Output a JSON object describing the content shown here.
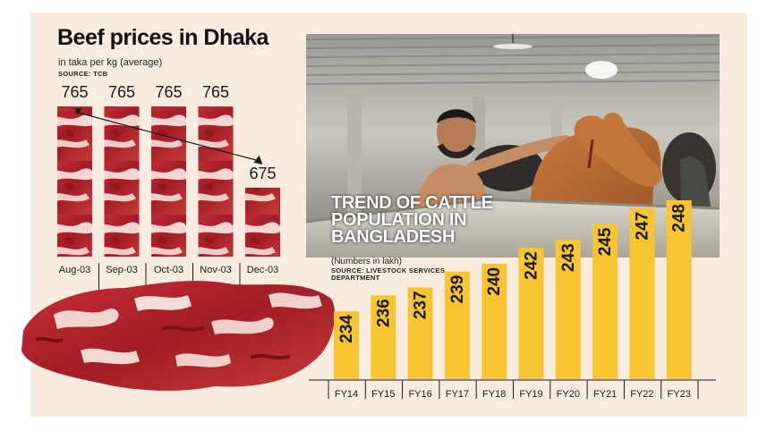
{
  "beef_chart": {
    "title": "Beef prices in Dhaka",
    "subtitle": "in taka per kg (average)",
    "source": "SOURCE: TCB"
  },
  "cattle_chart": {
    "title": "TREND OF CATTLE POPULATION IN BANGLADESH",
    "units": "(Numbers in lakh)",
    "source": "SOURCE: LIVESTOCK SERVICES DEPARTMENT"
  },
  "chart_data": [
    {
      "type": "bar",
      "title": "Beef prices in Dhaka",
      "subtitle": "in taka per kg (average)",
      "source": "SOURCE: TCB",
      "categories": [
        "Aug-03",
        "Sep-03",
        "Oct-03",
        "Nov-03",
        "Dec-03"
      ],
      "values": [
        765,
        765,
        765,
        765,
        675
      ],
      "data_labels": [
        "765",
        "765",
        "765",
        "765",
        "675"
      ],
      "bar_fill": "beef-meat-image",
      "trend_arrow": true,
      "ylim": [
        0,
        765
      ]
    },
    {
      "type": "bar",
      "title": "TREND OF CATTLE POPULATION IN BANGLADESH",
      "units": "(Numbers in lakh)",
      "source": "SOURCE: LIVESTOCK SERVICES DEPARTMENT",
      "categories": [
        "FY14",
        "FY15",
        "FY16",
        "FY17",
        "FY18",
        "FY19",
        "FY20",
        "FY21",
        "FY22",
        "FY23"
      ],
      "values": [
        234,
        236,
        237,
        239,
        240,
        242,
        243,
        245,
        247,
        248
      ],
      "data_labels": [
        "234",
        "236",
        "237",
        "239",
        "240",
        "242",
        "243",
        "245",
        "247",
        "248"
      ],
      "bar_color": "#f7c531",
      "ylim": [
        0,
        248
      ]
    }
  ],
  "colors": {
    "panel_background": "#f9ecdf",
    "cattle_bar": "#f7c531",
    "meat_red": "#b52430",
    "meat_fat": "#f3d9d2"
  }
}
